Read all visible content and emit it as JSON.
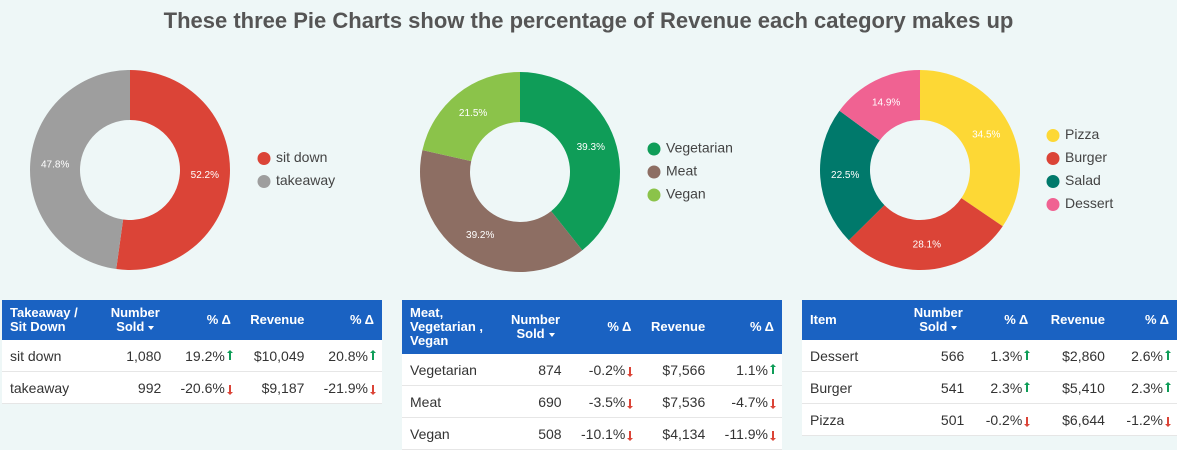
{
  "title": "These three Pie Charts show the percentage of Revenue each category makes up",
  "chart_data": [
    {
      "type": "pie",
      "categories": [
        "sit down",
        "takeaway"
      ],
      "values": [
        52.2,
        47.8
      ],
      "value_labels": [
        "52.2%",
        "47.8%"
      ],
      "colors": [
        "#db4437",
        "#9e9e9e"
      ]
    },
    {
      "type": "pie",
      "categories": [
        "Vegetarian",
        "Meat",
        "Vegan"
      ],
      "values": [
        39.3,
        39.2,
        21.5
      ],
      "value_labels": [
        "39.3%",
        "39.2%",
        "21.5%"
      ],
      "colors": [
        "#0f9d58",
        "#8d6e63",
        "#8bc34a"
      ]
    },
    {
      "type": "pie",
      "categories": [
        "Pizza",
        "Burger",
        "Salad",
        "Dessert"
      ],
      "values": [
        34.5,
        28.1,
        22.5,
        14.9
      ],
      "value_labels": [
        "34.5%",
        "28.1%",
        "22.5%",
        "14.9%"
      ],
      "colors": [
        "#fdd835",
        "#db4437",
        "#00796b",
        "#f06292"
      ]
    }
  ],
  "tables": [
    {
      "header": [
        "Takeaway / Sit Down",
        "Number Sold",
        "% Δ",
        "Revenue",
        "% Δ"
      ],
      "rows": [
        [
          "sit down",
          "1,080",
          "19.2%",
          "$10,049",
          "20.8%"
        ],
        [
          "takeaway",
          "992",
          "-20.6%",
          "$9,187",
          "-21.9%"
        ]
      ]
    },
    {
      "header": [
        "Meat, Vegetarian , Vegan",
        "Number Sold",
        "% Δ",
        "Revenue",
        "% Δ"
      ],
      "rows": [
        [
          "Vegetarian",
          "874",
          "-0.2%",
          "$7,566",
          "1.1%"
        ],
        [
          "Meat",
          "690",
          "-3.5%",
          "$7,536",
          "-4.7%"
        ],
        [
          "Vegan",
          "508",
          "-10.1%",
          "$4,134",
          "-11.9%"
        ]
      ]
    },
    {
      "header": [
        "Item",
        "Number Sold",
        "% Δ",
        "Revenue",
        "% Δ"
      ],
      "rows": [
        [
          "Dessert",
          "566",
          "1.3%",
          "$2,860",
          "2.6%"
        ],
        [
          "Burger",
          "541",
          "2.3%",
          "$5,410",
          "2.3%"
        ],
        [
          "Pizza",
          "501",
          "-0.2%",
          "$6,644",
          "-1.2%"
        ]
      ]
    }
  ]
}
